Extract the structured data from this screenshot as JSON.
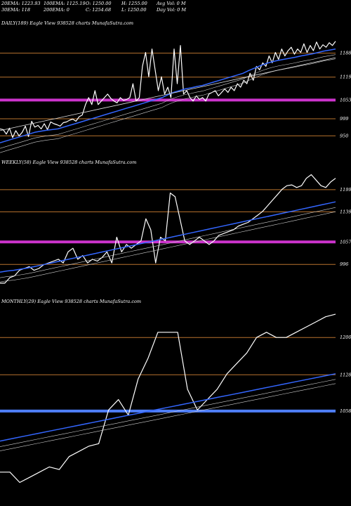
{
  "header": {
    "ema20": "20EMA: 1223.93",
    "ema100": "100EMA: 1125.19",
    "open": "O: 1250.00",
    "high": "H: 1255.00",
    "avg_vol": "Avg Vol: 0  M",
    "ema30": "30EMA: 118",
    "ema200": "200EMA: 0",
    "close": "C: 1254.68",
    "low": "L: 1250.00",
    "day_vol": "Day Vol: 0  M"
  },
  "colors": {
    "price": "#ffffff",
    "ema": "#3366ff",
    "level": "#b8732e",
    "highlight": "#cc33cc",
    "highlight_monthly": "#4f7fff"
  },
  "chart_data": [
    {
      "type": "line",
      "title": "DAILY(189) Eagle   View  938528  charts MunafaSutra.com",
      "levels": [
        1188,
        1119,
        1053,
        999,
        950
      ],
      "level_labels": [
        "1188",
        "1119",
        "1053",
        "999",
        "950"
      ],
      "highlight_level": 1053,
      "ylim": [
        900,
        1260
      ],
      "series": [
        {
          "role": "price",
          "values": [
            970,
            968,
            955,
            972,
            945,
            965,
            950,
            960,
            978,
            948,
            992,
            975,
            980,
            970,
            985,
            968,
            990,
            985,
            982,
            978,
            988,
            990,
            995,
            998,
            992,
            1005,
            1010,
            1040,
            1060,
            1040,
            1080,
            1040,
            1050,
            1060,
            1070,
            1058,
            1050,
            1045,
            1060,
            1052,
            1055,
            1060,
            1100,
            1050,
            1060,
            1150,
            1190,
            1120,
            1200,
            1140,
            1080,
            1120,
            1070,
            1090,
            1060,
            1200,
            1100,
            1210,
            1070,
            1080,
            1060,
            1050,
            1065,
            1055,
            1060,
            1050,
            1070,
            1075,
            1080,
            1065,
            1075,
            1085,
            1075,
            1090,
            1080,
            1100,
            1090,
            1110,
            1100,
            1130,
            1110,
            1150,
            1140,
            1160,
            1150,
            1180,
            1160,
            1190,
            1170,
            1200,
            1180,
            1195,
            1205,
            1185,
            1200,
            1190,
            1215,
            1190,
            1210,
            1195,
            1220,
            1200,
            1212,
            1205,
            1218,
            1210,
            1222
          ]
        },
        {
          "role": "ema",
          "values": [
            930,
            935,
            940,
            945,
            950,
            955,
            960,
            963,
            966,
            968,
            970,
            975,
            980,
            985,
            990,
            995,
            1000,
            1005,
            1010,
            1015,
            1020,
            1025,
            1030,
            1035,
            1040,
            1045,
            1050,
            1055,
            1060,
            1068,
            1075,
            1080,
            1085,
            1088,
            1092,
            1095,
            1100,
            1105,
            1110,
            1115,
            1120,
            1125,
            1130,
            1138,
            1145,
            1152,
            1158,
            1163,
            1167,
            1170,
            1173,
            1176,
            1180,
            1183,
            1186,
            1190,
            1194,
            1197,
            1200
          ]
        },
        {
          "role": "ema_slow",
          "values": [
            965,
            970,
            975,
            980,
            985,
            990,
            995,
            1000,
            1005,
            1010,
            1015,
            1020,
            1025,
            1030,
            1035,
            1040,
            1045,
            1050,
            1055,
            1060,
            1065,
            1070,
            1075,
            1080,
            1085,
            1090,
            1095,
            1100,
            1105,
            1110,
            1115,
            1120,
            1125,
            1130,
            1135,
            1140,
            1145,
            1150,
            1155,
            1160,
            1165,
            1170,
            1175
          ]
        }
      ]
    },
    {
      "type": "line",
      "title": "WEEKLY(58) Eagle   View  938528  charts MunafaSutra.com",
      "levels": [
        1199,
        1139,
        1057,
        996
      ],
      "level_labels": [
        "1199",
        "1139",
        "1057",
        "996"
      ],
      "highlight_level": 1057,
      "ylim": [
        920,
        1260
      ],
      "series": [
        {
          "role": "price",
          "values": [
            945,
            945,
            960,
            965,
            980,
            985,
            990,
            980,
            985,
            995,
            1000,
            1005,
            1010,
            1000,
            1030,
            1040,
            1010,
            1020,
            1000,
            1010,
            1005,
            1015,
            1030,
            1000,
            1070,
            1030,
            1050,
            1040,
            1050,
            1060,
            1120,
            1090,
            1000,
            1070,
            1060,
            1190,
            1180,
            1120,
            1060,
            1050,
            1060,
            1070,
            1060,
            1050,
            1060,
            1075,
            1080,
            1085,
            1090,
            1100,
            1105,
            1110,
            1120,
            1130,
            1140,
            1155,
            1170,
            1185,
            1200,
            1210,
            1212,
            1205,
            1210,
            1230,
            1240,
            1225,
            1210,
            1205,
            1220,
            1230
          ]
        },
        {
          "role": "ema",
          "values": [
            975,
            978,
            980,
            983,
            986,
            990,
            994,
            998,
            1002,
            1006,
            1010,
            1014,
            1018,
            1022,
            1026,
            1030,
            1034,
            1038,
            1042,
            1046,
            1050,
            1054,
            1058,
            1062,
            1066,
            1070,
            1074,
            1078,
            1082,
            1086,
            1090,
            1094,
            1098,
            1102,
            1106,
            1110,
            1114,
            1118,
            1122,
            1126,
            1130,
            1134,
            1138,
            1142,
            1146,
            1150,
            1154,
            1158,
            1162,
            1166
          ]
        }
      ]
    },
    {
      "type": "line",
      "title": "MONTHLY(29) Eagle   View  938528  charts MunafaSutra.com",
      "levels": [
        1200,
        1128,
        1058
      ],
      "level_labels": [
        "1200",
        "1128",
        "1058"
      ],
      "highlight_level": 1058,
      "ylim": [
        880,
        1260
      ],
      "series": [
        {
          "role": "price",
          "values": [
            940,
            940,
            920,
            930,
            940,
            950,
            945,
            970,
            980,
            990,
            995,
            1060,
            1080,
            1050,
            1120,
            1160,
            1210,
            1210,
            1210,
            1100,
            1060,
            1080,
            1100,
            1130,
            1150,
            1170,
            1200,
            1210,
            1200,
            1200,
            1210,
            1220,
            1230,
            1240,
            1245
          ]
        },
        {
          "role": "ema",
          "values": [
            1000,
            1005,
            1010,
            1015,
            1020,
            1025,
            1030,
            1035,
            1040,
            1045,
            1050,
            1055,
            1060,
            1065,
            1070,
            1075,
            1080,
            1085,
            1090,
            1095,
            1100,
            1105,
            1110,
            1115,
            1120,
            1125,
            1130
          ]
        }
      ]
    }
  ]
}
